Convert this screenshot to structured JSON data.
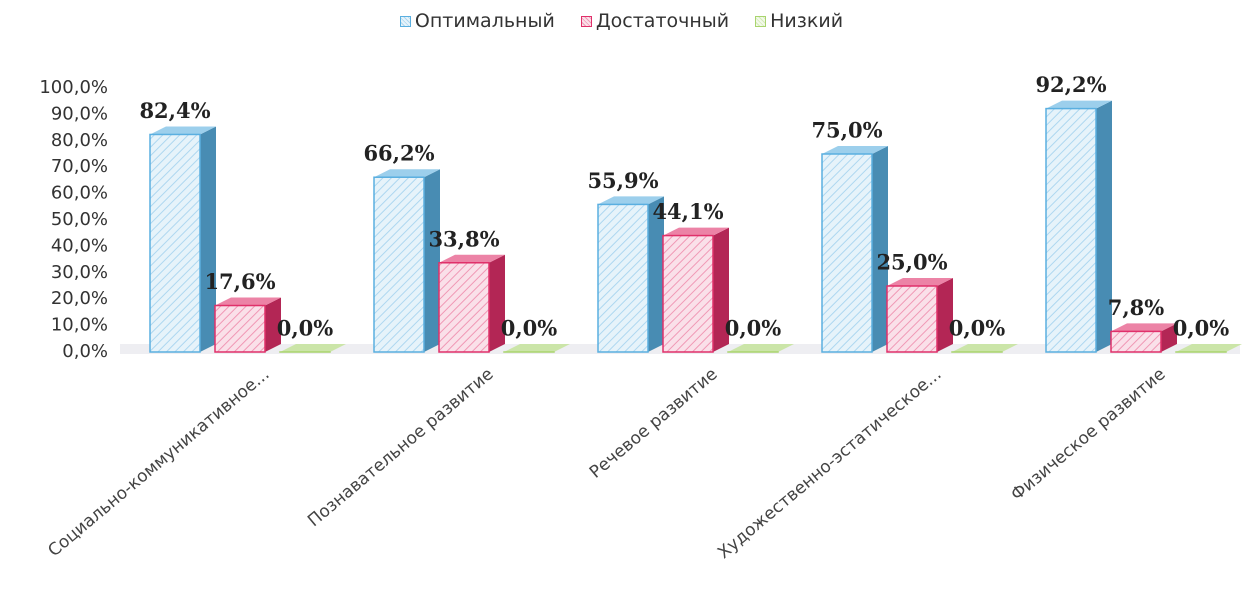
{
  "chart_data": {
    "type": "bar",
    "categories": [
      "Социально-коммуникативное...",
      "Познавательное развитие",
      "Речевое развитие",
      "Художественно-эстатическое...",
      "Физическое развитие"
    ],
    "series": [
      {
        "name": "Оптимальный",
        "color": "#5aafe0",
        "values": [
          82.4,
          66.2,
          55.9,
          75.0,
          92.2
        ],
        "value_labels": [
          "82,4%",
          "66,2%",
          "55,9%",
          "75,0%",
          "92,2%"
        ]
      },
      {
        "name": "Достаточный",
        "color": "#e0306a",
        "values": [
          17.6,
          33.8,
          44.1,
          25.0,
          7.8
        ],
        "value_labels": [
          "17,6%",
          "33,8%",
          "44,1%",
          "25,0%",
          "7,8%"
        ]
      },
      {
        "name": "Низкий",
        "color": "#a9d46e",
        "values": [
          0,
          0,
          0,
          0,
          0
        ],
        "value_labels": [
          "0,0%",
          "0,0%",
          "0,0%",
          "0,0%",
          "0,0%"
        ]
      }
    ],
    "ylim": [
      0,
      100
    ],
    "yticks": [
      {
        "value": 0,
        "label": "0,0%"
      },
      {
        "value": 10,
        "label": "10,0%"
      },
      {
        "value": 20,
        "label": "20,0%"
      },
      {
        "value": 30,
        "label": "30,0%"
      },
      {
        "value": 40,
        "label": "40,0%"
      },
      {
        "value": 50,
        "label": "50,0%"
      },
      {
        "value": 60,
        "label": "60,0%"
      },
      {
        "value": 70,
        "label": "70,0%"
      },
      {
        "value": 80,
        "label": "80,0%"
      },
      {
        "value": 90,
        "label": "90,0%"
      },
      {
        "value": 100,
        "label": "100,0%"
      }
    ],
    "legend": "top"
  }
}
